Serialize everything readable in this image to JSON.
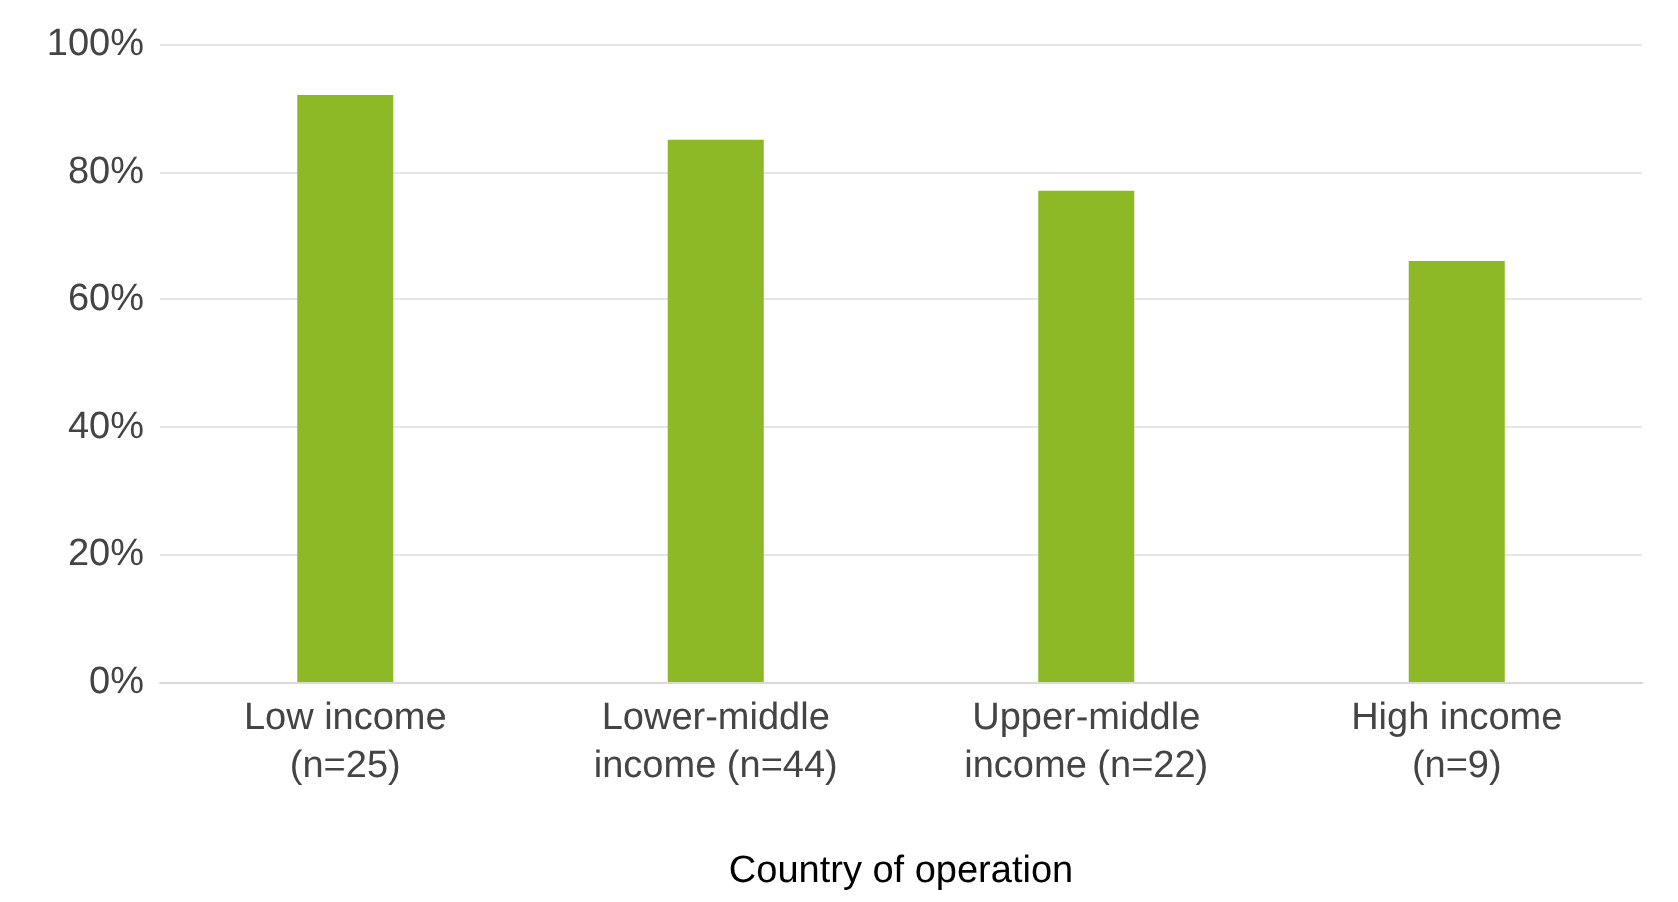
{
  "chart_data": {
    "type": "bar",
    "xlabel": "Country of operation",
    "categories": [
      "Low income\n(n=25)",
      "Lower-middle\nincome (n=44)",
      "Upper-middle\nincome (n=22)",
      "High income\n(n=9)"
    ],
    "values": [
      92,
      85,
      77,
      66
    ],
    "color": "#8db927",
    "ylim": [
      0,
      100
    ],
    "yticks": [
      {
        "value": 0,
        "label": "0%"
      },
      {
        "value": 20,
        "label": "20%"
      },
      {
        "value": 40,
        "label": "40%"
      },
      {
        "value": 60,
        "label": "60%"
      },
      {
        "value": 80,
        "label": "80%"
      },
      {
        "value": 100,
        "label": "100%"
      }
    ],
    "grid": "y"
  }
}
